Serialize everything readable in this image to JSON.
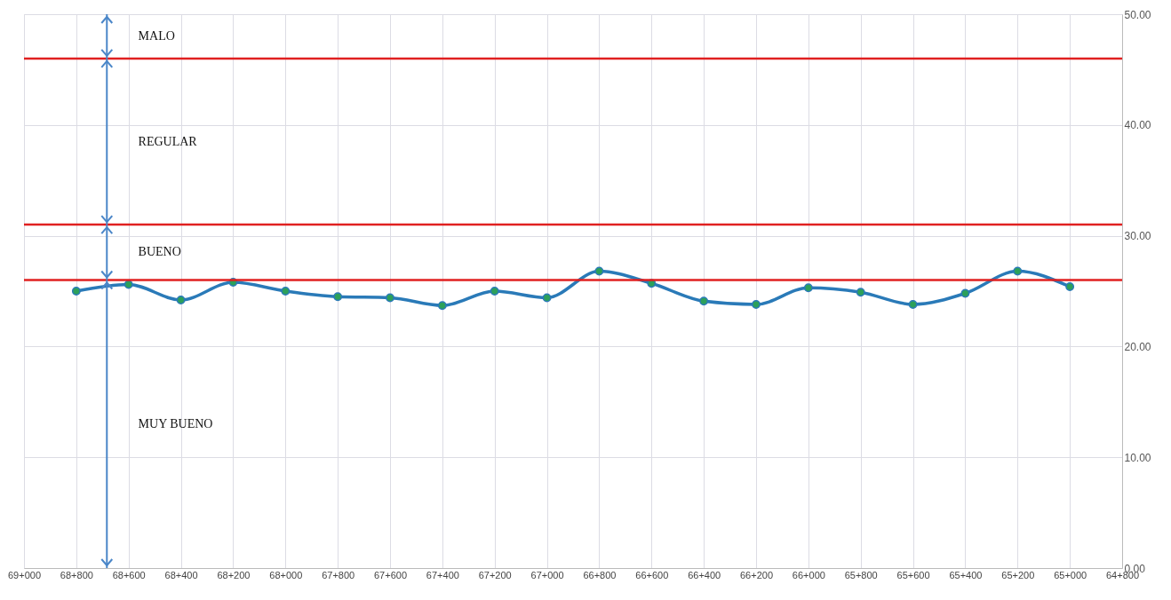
{
  "chart_data": {
    "type": "line",
    "categories": [
      "69+000",
      "68+800",
      "68+600",
      "68+400",
      "68+200",
      "68+000",
      "67+800",
      "67+600",
      "67+400",
      "67+200",
      "67+000",
      "66+800",
      "66+600",
      "66+400",
      "66+200",
      "66+000",
      "65+800",
      "65+600",
      "65+400",
      "65+200",
      "65+000",
      "64+800"
    ],
    "series": [
      {
        "color": "#2a7ab8",
        "values": [
          null,
          25.0,
          25.6,
          24.2,
          25.8,
          25.0,
          24.5,
          24.4,
          23.7,
          25.0,
          24.4,
          26.8,
          25.7,
          24.1,
          23.8,
          25.3,
          24.9,
          23.8,
          24.8,
          26.8,
          25.4,
          null
        ]
      }
    ],
    "marker": "circle",
    "ylim": [
      0,
      50
    ],
    "yticks": [
      {
        "value": 0,
        "label": "0.00"
      },
      {
        "value": 10,
        "label": "10.00"
      },
      {
        "value": 20,
        "label": "20.00"
      },
      {
        "value": 30,
        "label": "30.00"
      },
      {
        "value": 40,
        "label": "40.00"
      },
      {
        "value": 50,
        "label": "50.00"
      }
    ],
    "grid": true,
    "ref_lines": [
      {
        "axis": "y",
        "value": 46,
        "color": "#e02020"
      },
      {
        "axis": "y",
        "value": 31,
        "color": "#e02020"
      },
      {
        "axis": "y",
        "value": 26,
        "color": "#e02020"
      }
    ],
    "line_style": "solid",
    "annotations": [
      "MALO",
      "REGULAR",
      "BUENO",
      "MUY BUENO"
    ]
  }
}
